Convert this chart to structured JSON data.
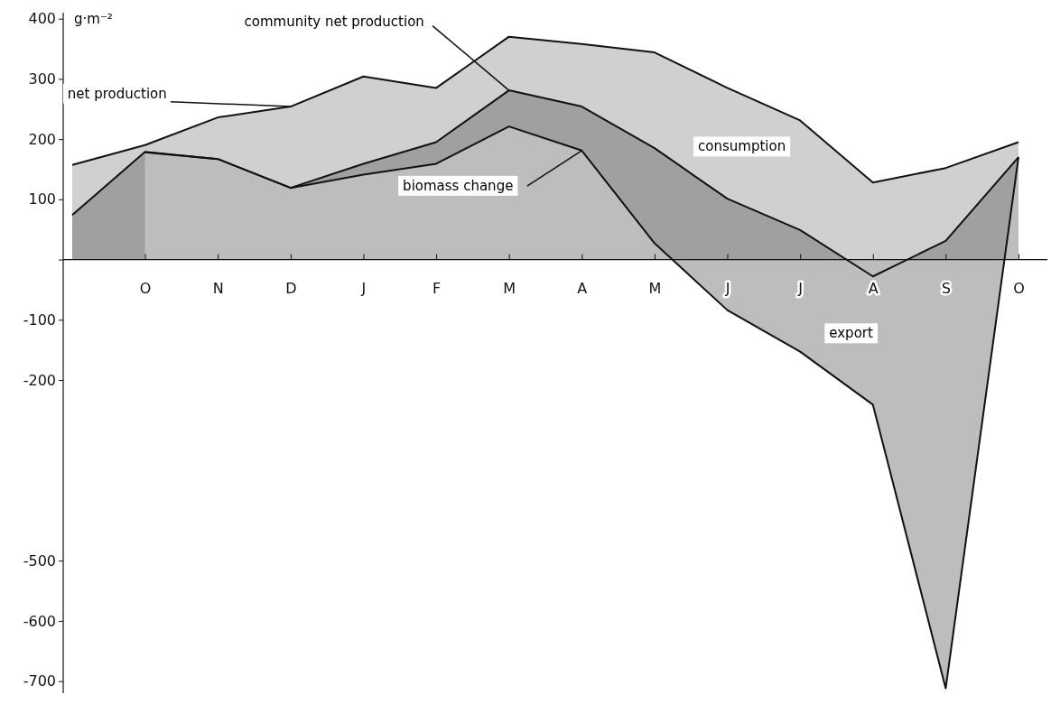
{
  "chart_data": {
    "type": "area",
    "ylabel": "g·m⁻²",
    "ylim": [
      -720,
      410
    ],
    "categories": [
      null,
      "O",
      "N",
      "D",
      "J",
      "F",
      "M",
      "A",
      "M",
      "J",
      "J",
      "A",
      "S",
      "O"
    ],
    "yticks": [
      400,
      300,
      200,
      100,
      {
        "value": 0,
        "label": null
      },
      -100,
      -200,
      -500,
      -600,
      -700
    ],
    "series": [
      {
        "color": "#d0d0d0",
        "values": [
          157,
          190,
          236,
          254,
          304,
          285,
          370,
          358,
          344,
          285,
          231,
          128,
          152,
          195
        ]
      },
      {
        "color": "#a0a0a0",
        "values": [
          74,
          179,
          167,
          119,
          159,
          195,
          281,
          254,
          185,
          101,
          49,
          -28,
          31,
          170
        ]
      },
      {
        "color": "#bdbdbd",
        "values": [
          null,
          178,
          167,
          119,
          141,
          159,
          221,
          181,
          27,
          -84,
          -153,
          -241,
          -712,
          170
        ]
      }
    ],
    "annotations": [
      {
        "text": "net production",
        "x": "D",
        "y": 254
      },
      {
        "text": "community net production",
        "x": "M",
        "y": 281
      },
      {
        "text": "biomass change",
        "x": "A",
        "y": 181
      },
      "consumption",
      "export"
    ]
  }
}
